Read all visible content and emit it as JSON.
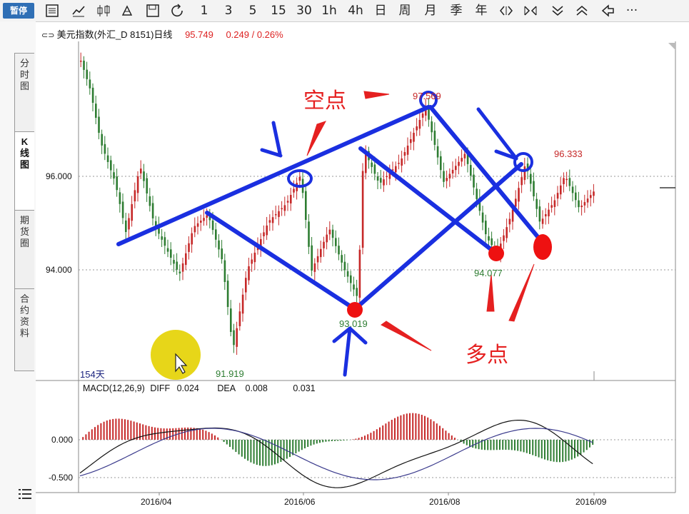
{
  "toolbar": {
    "pause_label": "暂停",
    "periods": [
      "1",
      "3",
      "5",
      "15",
      "30",
      "1h",
      "4h",
      "日",
      "周",
      "月",
      "季",
      "年"
    ],
    "more_label": "···"
  },
  "sidebar": {
    "tabs": [
      {
        "label": "分时图"
      },
      {
        "label": "K线图"
      },
      {
        "label": "期货圈"
      },
      {
        "label": "合约资料"
      }
    ]
  },
  "chart_header": {
    "title": "美元指数(外汇_D 8151)日线",
    "price": "95.749",
    "change": "0.249 / 0.26%"
  },
  "price_axis": {
    "upper": "96.000",
    "lower": "94.000"
  },
  "macd_axis": {
    "zero": "0.000",
    "neg": "-0.500"
  },
  "x_axis": [
    "2016/04",
    "2016/06",
    "2016/08",
    "2016/09"
  ],
  "labels": {
    "days": "154天",
    "high_1": "97.569",
    "high_2": "96.333",
    "low_1": "91.919",
    "low_2": "93.019",
    "low_3": "94.077"
  },
  "macd": {
    "name": "MACD(12,26,9)",
    "diff_label": "DIFF",
    "diff_value": "0.024",
    "dea_label": "DEA",
    "dea_value": "0.008",
    "macd_value": "0.031"
  },
  "annotations": {
    "short_label": "空点",
    "long_label": "多点"
  },
  "colors": {
    "up": "#c62828",
    "down": "#2e7d32",
    "annotation_line": "#1a2fe0",
    "annotation_text": "#e52020"
  }
}
